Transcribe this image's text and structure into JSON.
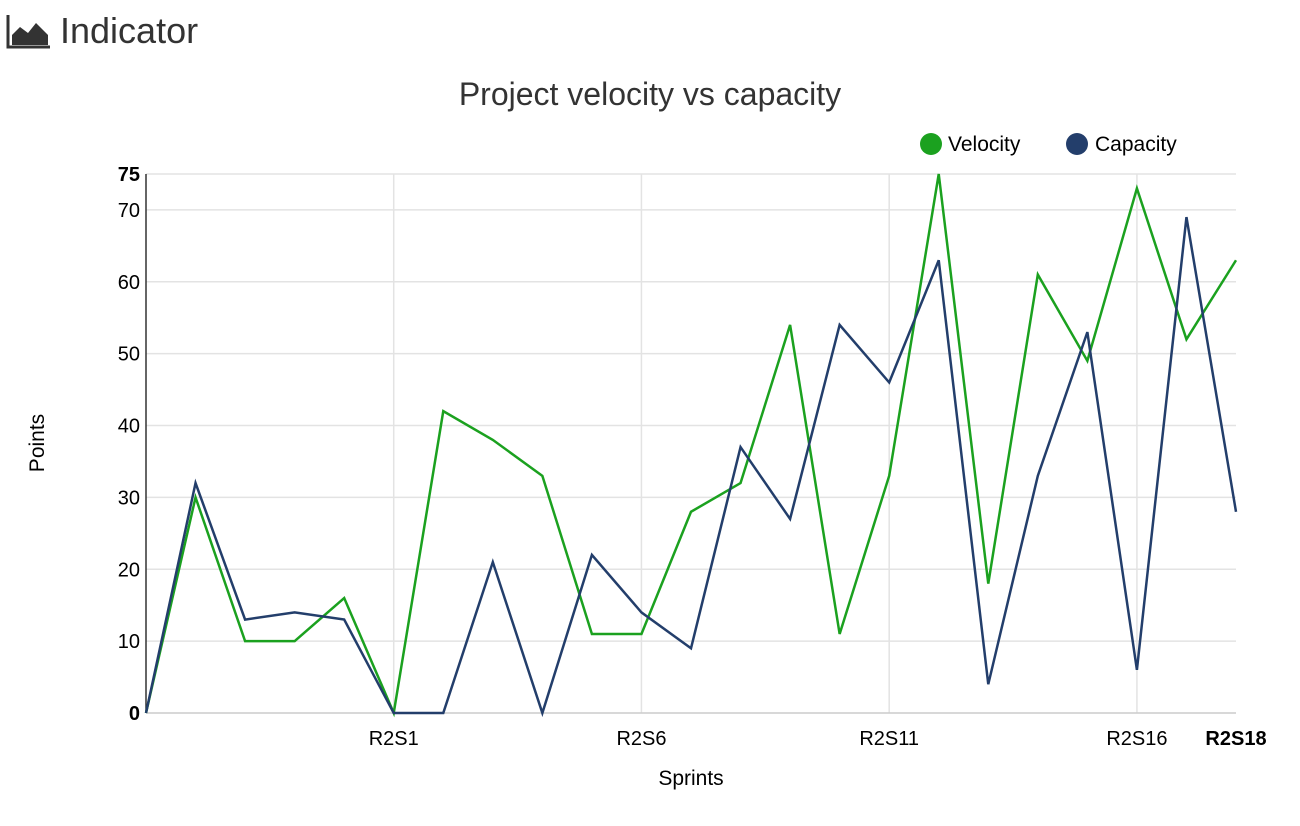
{
  "header": {
    "title": "Indicator",
    "icon": "area-chart-icon"
  },
  "chart_data": {
    "type": "line",
    "title": "Project velocity vs capacity",
    "xlabel": "Sprints",
    "ylabel": "Points",
    "ylim": [
      0,
      75
    ],
    "y_ticks": [
      0,
      10,
      20,
      30,
      40,
      50,
      60,
      70,
      75
    ],
    "x_tick_labels": [
      {
        "index": 5,
        "label": "R2S1",
        "bold": false
      },
      {
        "index": 10,
        "label": "R2S6",
        "bold": false
      },
      {
        "index": 15,
        "label": "R2S11",
        "bold": false
      },
      {
        "index": 20,
        "label": "R2S16",
        "bold": false
      },
      {
        "index": 22,
        "label": "R2S18",
        "bold": true
      }
    ],
    "point_count": 23,
    "grid": true,
    "legend_position": "top-right",
    "series": [
      {
        "name": "Velocity",
        "color": "#1ba11f",
        "values": [
          0,
          30,
          10,
          10,
          16,
          0,
          42,
          38,
          33,
          11,
          11,
          28,
          32,
          54,
          11,
          33,
          75,
          18,
          61,
          49,
          73,
          52,
          63
        ]
      },
      {
        "name": "Capacity",
        "color": "#233e6b",
        "values": [
          0,
          32,
          13,
          14,
          13,
          0,
          0,
          21,
          0,
          22,
          14,
          9,
          37,
          27,
          54,
          46,
          63,
          4,
          33,
          53,
          6,
          69,
          28
        ]
      }
    ]
  }
}
